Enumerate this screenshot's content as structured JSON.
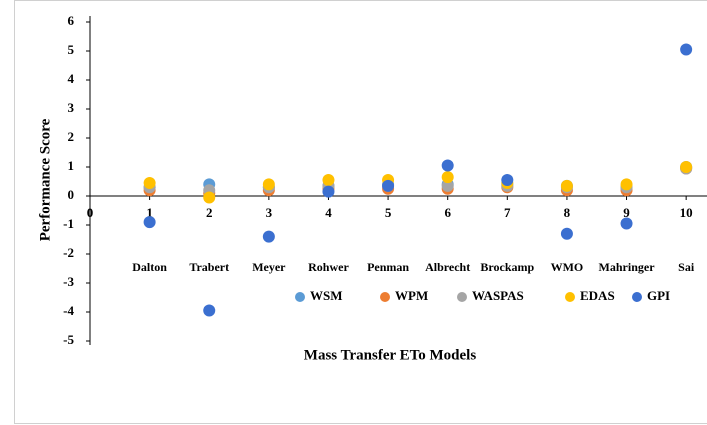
{
  "chart_data": {
    "type": "scatter",
    "x_label": "Mass Transfer ETo Models",
    "y_label": "Performance Score",
    "x": [
      1,
      2,
      3,
      4,
      5,
      6,
      7,
      8,
      9,
      10
    ],
    "categories": [
      "Dalton",
      "Trabert",
      "Meyer",
      "Rohwer",
      "Penman",
      "Albrecht",
      "Brockamp",
      "WMO",
      "Mahringer",
      "Sai"
    ],
    "xlim": [
      0,
      10.4
    ],
    "xticks": [
      0,
      1,
      2,
      3,
      4,
      5,
      6,
      7,
      8,
      9,
      10
    ],
    "ylim": [
      -5,
      6
    ],
    "yticks": [
      -5,
      -4,
      -3,
      -2,
      -1,
      0,
      1,
      2,
      3,
      4,
      5,
      6
    ],
    "grid": false,
    "legend": "bottom",
    "series": [
      {
        "name": "WSM",
        "color": "#5b9bd5",
        "values": [
          0.3,
          0.4,
          0.3,
          0.35,
          0.4,
          0.4,
          0.4,
          0.35,
          0.3,
          1.0
        ]
      },
      {
        "name": "WPM",
        "color": "#ed7d31",
        "values": [
          0.2,
          0.1,
          0.2,
          0.25,
          0.25,
          0.25,
          0.3,
          0.2,
          0.2,
          0.95
        ]
      },
      {
        "name": "WASPAS",
        "color": "#a5a5a5",
        "values": [
          0.3,
          0.2,
          0.3,
          0.35,
          0.35,
          0.35,
          0.35,
          0.3,
          0.3,
          0.95
        ]
      },
      {
        "name": "EDAS",
        "color": "#ffc000",
        "values": [
          0.45,
          -0.05,
          0.4,
          0.55,
          0.55,
          0.65,
          0.45,
          0.35,
          0.4,
          1.0
        ]
      },
      {
        "name": "GPI",
        "color": "#3b6fd0",
        "values": [
          -0.9,
          -3.95,
          -1.4,
          0.15,
          0.35,
          1.05,
          0.55,
          -1.3,
          -0.95,
          5.05
        ]
      }
    ]
  }
}
